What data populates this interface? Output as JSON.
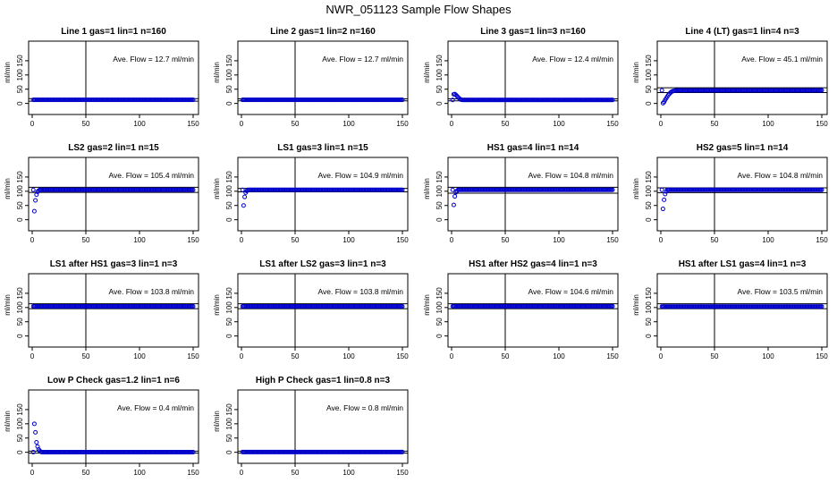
{
  "title": "NWR_051123  Sample Flow Shapes",
  "colors": {
    "points": "#0000cc",
    "axes": "#000000",
    "background": "#ffffff"
  },
  "chart_data": [
    {
      "type": "scatter",
      "title": "Line 1 gas=1 lin=1 n=160",
      "ylabel": "ml/min",
      "xlim": [
        0,
        150
      ],
      "ylim": [
        -20,
        200
      ],
      "xticks": [
        "0",
        "50",
        "100",
        "150"
      ],
      "yticks": [
        "0",
        "50",
        "100",
        "150"
      ],
      "vline_x": 50,
      "annotation": "Ave. Flow =  12.7  ml/min",
      "hlines": [
        8,
        17
      ],
      "points": {
        "x_start": 1,
        "x_end": 150,
        "y_tail": 12.7,
        "head": []
      }
    },
    {
      "type": "scatter",
      "title": "Line 2 gas=1 lin=2 n=160",
      "ylabel": "ml/min",
      "xlim": [
        0,
        150
      ],
      "ylim": [
        -20,
        200
      ],
      "xticks": [
        "0",
        "50",
        "100",
        "150"
      ],
      "yticks": [
        "0",
        "50",
        "100",
        "150"
      ],
      "vline_x": 50,
      "annotation": "Ave. Flow =  12.7  ml/min",
      "hlines": [
        9,
        16
      ],
      "points": {
        "x_start": 1,
        "x_end": 150,
        "y_tail": 12.7,
        "head": []
      }
    },
    {
      "type": "scatter",
      "title": "Line 3 gas=1 lin=3 n=160",
      "ylabel": "ml/min",
      "xlim": [
        0,
        150
      ],
      "ylim": [
        -20,
        200
      ],
      "xticks": [
        "0",
        "50",
        "100",
        "150"
      ],
      "yticks": [
        "0",
        "50",
        "100",
        "150"
      ],
      "vline_x": 50,
      "annotation": "Ave. Flow =  12.4  ml/min",
      "hlines": [
        9,
        16
      ],
      "points": {
        "x_start": 1,
        "x_end": 150,
        "y_tail": 12.4,
        "head": [
          [
            2,
            32
          ],
          [
            3,
            33
          ],
          [
            4,
            30
          ],
          [
            5,
            26
          ],
          [
            6,
            22
          ],
          [
            7,
            18
          ],
          [
            8,
            15
          ],
          [
            9,
            13
          ]
        ]
      }
    },
    {
      "type": "scatter",
      "title": "Line 4 (LT) gas=1 lin=4 n=3",
      "ylabel": "ml/min",
      "xlim": [
        0,
        150
      ],
      "ylim": [
        -20,
        200
      ],
      "xticks": [
        "0",
        "50",
        "100",
        "150"
      ],
      "yticks": [
        "0",
        "50",
        "100",
        "150"
      ],
      "vline_x": 50,
      "annotation": "Ave. Flow =  45.1  ml/min",
      "hlines": [
        38,
        55
      ],
      "points": {
        "x_start": 1,
        "x_end": 150,
        "y_tail": 46,
        "head": [
          [
            2,
            1
          ],
          [
            3,
            5
          ],
          [
            4,
            12
          ],
          [
            5,
            18
          ],
          [
            6,
            24
          ],
          [
            7,
            30
          ],
          [
            8,
            34
          ],
          [
            9,
            38
          ],
          [
            10,
            41
          ],
          [
            11,
            43
          ],
          [
            12,
            44
          ],
          [
            13,
            45
          ]
        ]
      }
    },
    {
      "type": "scatter",
      "title": "LS2 gas=2 lin=1 n=15",
      "ylabel": "ml/min",
      "xlim": [
        0,
        150
      ],
      "ylim": [
        -20,
        200
      ],
      "xticks": [
        "0",
        "50",
        "100",
        "150"
      ],
      "yticks": [
        "0",
        "50",
        "100",
        "150"
      ],
      "vline_x": 50,
      "annotation": "Ave. Flow =  105.4  ml/min",
      "hlines": [
        96,
        114
      ],
      "points": {
        "x_start": 1,
        "x_end": 150,
        "y_tail": 105,
        "head": [
          [
            2,
            30
          ],
          [
            3,
            68
          ],
          [
            4,
            88
          ],
          [
            5,
            98
          ],
          [
            6,
            102
          ]
        ]
      }
    },
    {
      "type": "scatter",
      "title": "LS1 gas=3 lin=1 n=15",
      "ylabel": "ml/min",
      "xlim": [
        0,
        150
      ],
      "ylim": [
        -20,
        200
      ],
      "xticks": [
        "0",
        "50",
        "100",
        "150"
      ],
      "yticks": [
        "0",
        "50",
        "100",
        "150"
      ],
      "vline_x": 50,
      "annotation": "Ave. Flow =  104.9  ml/min",
      "hlines": [
        98,
        110
      ],
      "points": {
        "x_start": 1,
        "x_end": 150,
        "y_tail": 105,
        "head": [
          [
            2,
            50
          ],
          [
            3,
            80
          ],
          [
            4,
            95
          ],
          [
            5,
            101
          ]
        ]
      }
    },
    {
      "type": "scatter",
      "title": "HS1 gas=4 lin=1 n=14",
      "ylabel": "ml/min",
      "xlim": [
        0,
        150
      ],
      "ylim": [
        -20,
        200
      ],
      "xticks": [
        "0",
        "50",
        "100",
        "150"
      ],
      "yticks": [
        "0",
        "50",
        "100",
        "150"
      ],
      "vline_x": 50,
      "annotation": "Ave. Flow =  104.8  ml/min",
      "hlines": [
        93,
        114
      ],
      "points": {
        "x_start": 1,
        "x_end": 150,
        "y_tail": 105,
        "head": [
          [
            2,
            52
          ],
          [
            3,
            82
          ],
          [
            4,
            96
          ],
          [
            5,
            101
          ]
        ]
      }
    },
    {
      "type": "scatter",
      "title": "HS2 gas=5 lin=1 n=14",
      "ylabel": "ml/min",
      "xlim": [
        0,
        150
      ],
      "ylim": [
        -20,
        200
      ],
      "xticks": [
        "0",
        "50",
        "100",
        "150"
      ],
      "yticks": [
        "0",
        "50",
        "100",
        "150"
      ],
      "vline_x": 50,
      "annotation": "Ave. Flow =  104.8  ml/min",
      "hlines": [
        95,
        112
      ],
      "points": {
        "x_start": 1,
        "x_end": 150,
        "y_tail": 105,
        "head": [
          [
            2,
            38
          ],
          [
            3,
            70
          ],
          [
            4,
            90
          ],
          [
            5,
            99
          ]
        ]
      }
    },
    {
      "type": "scatter",
      "title": "LS1 after HS1 gas=3 lin=1 n=3",
      "ylabel": "ml/min",
      "xlim": [
        0,
        150
      ],
      "ylim": [
        -20,
        200
      ],
      "xticks": [
        "0",
        "50",
        "100",
        "150"
      ],
      "yticks": [
        "0",
        "50",
        "100",
        "150"
      ],
      "vline_x": 50,
      "annotation": "Ave. Flow =  103.8  ml/min",
      "hlines": [
        96,
        113
      ],
      "points": {
        "x_start": 1,
        "x_end": 150,
        "y_tail": 104,
        "head": []
      }
    },
    {
      "type": "scatter",
      "title": "LS1 after LS2 gas=3 lin=1 n=3",
      "ylabel": "ml/min",
      "xlim": [
        0,
        150
      ],
      "ylim": [
        -20,
        200
      ],
      "xticks": [
        "0",
        "50",
        "100",
        "150"
      ],
      "yticks": [
        "0",
        "50",
        "100",
        "150"
      ],
      "vline_x": 50,
      "annotation": "Ave. Flow =  103.8  ml/min",
      "hlines": [
        96,
        113
      ],
      "points": {
        "x_start": 1,
        "x_end": 150,
        "y_tail": 104,
        "head": []
      }
    },
    {
      "type": "scatter",
      "title": "HS1 after HS2 gas=4 lin=1 n=3",
      "ylabel": "ml/min",
      "xlim": [
        0,
        150
      ],
      "ylim": [
        -20,
        200
      ],
      "xticks": [
        "0",
        "50",
        "100",
        "150"
      ],
      "yticks": [
        "0",
        "50",
        "100",
        "150"
      ],
      "vline_x": 50,
      "annotation": "Ave. Flow =  104.6  ml/min",
      "hlines": [
        96,
        113
      ],
      "points": {
        "x_start": 1,
        "x_end": 150,
        "y_tail": 104.6,
        "head": []
      }
    },
    {
      "type": "scatter",
      "title": "HS1 after LS1 gas=4 lin=1 n=3",
      "ylabel": "ml/min",
      "xlim": [
        0,
        150
      ],
      "ylim": [
        -20,
        200
      ],
      "xticks": [
        "0",
        "50",
        "100",
        "150"
      ],
      "yticks": [
        "0",
        "50",
        "100",
        "150"
      ],
      "vline_x": 50,
      "annotation": "Ave. Flow =  103.5  ml/min",
      "hlines": [
        96,
        113
      ],
      "points": {
        "x_start": 1,
        "x_end": 150,
        "y_tail": 103.5,
        "head": []
      }
    },
    {
      "type": "scatter",
      "title": "Low P Check gas=1.2 lin=1 n=6",
      "ylabel": "ml/min",
      "xlim": [
        0,
        150
      ],
      "ylim": [
        -20,
        200
      ],
      "xticks": [
        "0",
        "50",
        "100",
        "150"
      ],
      "yticks": [
        "0",
        "50",
        "100",
        "150"
      ],
      "vline_x": 50,
      "annotation": "Ave. Flow =  0.4  ml/min",
      "hlines": [
        -3,
        4
      ],
      "points": {
        "x_start": 1,
        "x_end": 150,
        "y_tail": 0.4,
        "head": [
          [
            2,
            100
          ],
          [
            3,
            70
          ],
          [
            4,
            35
          ],
          [
            5,
            20
          ],
          [
            6,
            10
          ],
          [
            7,
            5
          ],
          [
            8,
            2
          ]
        ]
      }
    },
    {
      "type": "scatter",
      "title": "High P Check gas=1 lin=0.8 n=3",
      "ylabel": "ml/min",
      "xlim": [
        0,
        150
      ],
      "ylim": [
        -20,
        200
      ],
      "xticks": [
        "0",
        "50",
        "100",
        "150"
      ],
      "yticks": [
        "0",
        "50",
        "100",
        "150"
      ],
      "vline_x": 50,
      "annotation": "Ave. Flow =  0.8  ml/min",
      "hlines": [
        -3,
        4
      ],
      "points": {
        "x_start": 1,
        "x_end": 150,
        "y_tail": 0.8,
        "head": []
      }
    }
  ]
}
